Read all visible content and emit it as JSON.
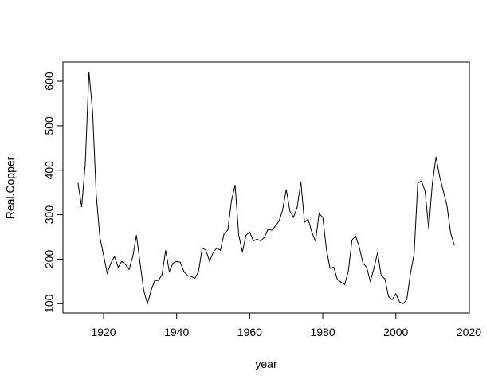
{
  "chart_data": {
    "type": "line",
    "xlabel": "year",
    "ylabel": "Real.Copper",
    "x": [
      1913,
      1914,
      1915,
      1916,
      1917,
      1918,
      1919,
      1920,
      1921,
      1922,
      1923,
      1924,
      1925,
      1926,
      1927,
      1928,
      1929,
      1930,
      1931,
      1932,
      1933,
      1934,
      1935,
      1936,
      1937,
      1938,
      1939,
      1940,
      1941,
      1942,
      1943,
      1944,
      1945,
      1946,
      1947,
      1948,
      1949,
      1950,
      1951,
      1952,
      1953,
      1954,
      1955,
      1956,
      1957,
      1958,
      1959,
      1960,
      1961,
      1962,
      1963,
      1964,
      1965,
      1966,
      1967,
      1968,
      1969,
      1970,
      1971,
      1972,
      1973,
      1974,
      1975,
      1976,
      1977,
      1978,
      1979,
      1980,
      1981,
      1982,
      1983,
      1984,
      1985,
      1986,
      1987,
      1988,
      1989,
      1990,
      1991,
      1992,
      1993,
      1994,
      1995,
      1996,
      1997,
      1998,
      1999,
      2000,
      2001,
      2002,
      2003,
      2004,
      2005,
      2006,
      2007,
      2008,
      2009,
      2010,
      2011,
      2012,
      2013,
      2014,
      2015,
      2016
    ],
    "values": [
      372,
      317,
      415,
      621,
      532,
      344,
      249,
      209,
      168,
      191,
      206,
      182,
      195,
      188,
      177,
      206,
      254,
      191,
      129,
      100,
      129,
      152,
      152,
      165,
      220,
      172,
      191,
      195,
      193,
      172,
      163,
      161,
      157,
      172,
      225,
      220,
      195,
      215,
      225,
      220,
      258,
      265,
      331,
      367,
      254,
      216,
      254,
      261,
      241,
      245,
      241,
      249,
      267,
      265,
      274,
      285,
      310,
      357,
      308,
      294,
      317,
      374,
      283,
      290,
      261,
      240,
      303,
      294,
      222,
      179,
      182,
      154,
      148,
      143,
      173,
      243,
      252,
      227,
      191,
      182,
      150,
      179,
      215,
      163,
      156,
      116,
      109,
      122,
      104,
      100,
      109,
      168,
      211,
      371,
      376,
      353,
      268,
      371,
      430,
      385,
      353,
      320,
      259,
      231
    ],
    "color": "#000000",
    "xlim": [
      1908.88,
      2020.12
    ],
    "ylim": [
      79,
      643
    ],
    "xticks": [
      1920,
      1940,
      1960,
      1980,
      2000,
      2020
    ],
    "yticks": [
      100,
      200,
      300,
      400,
      500,
      600
    ]
  }
}
